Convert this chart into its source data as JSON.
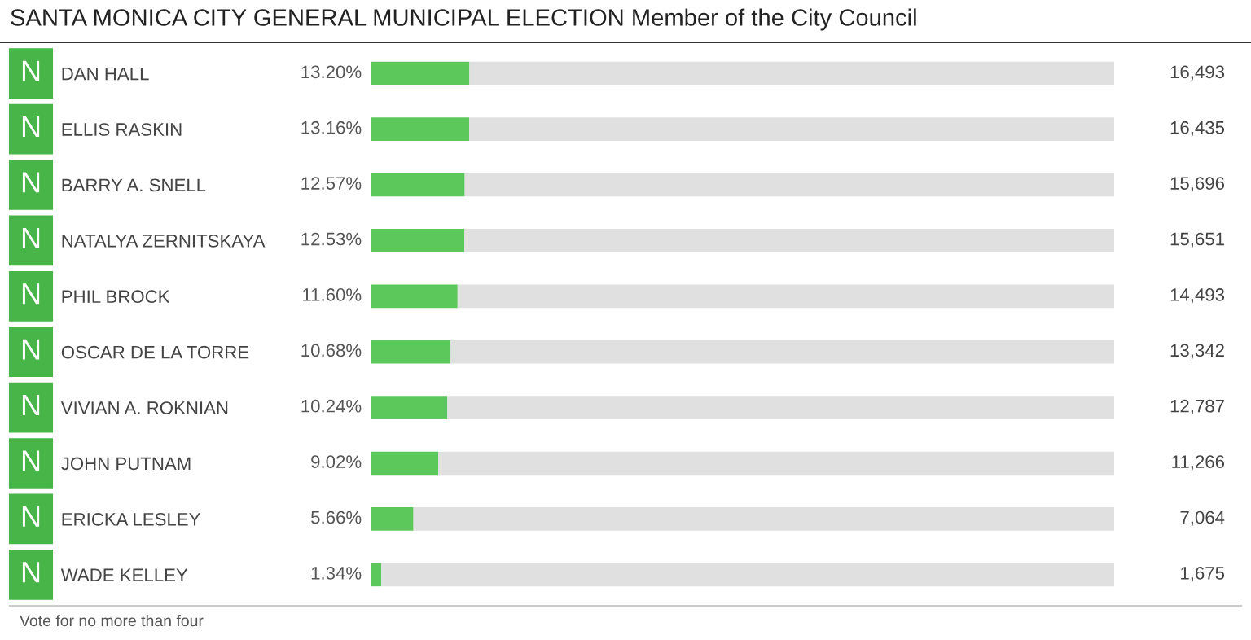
{
  "chart_data": {
    "type": "bar",
    "orientation": "horizontal",
    "stacked": true,
    "title": "SANTA MONICA CITY GENERAL MUNICIPAL ELECTION Member of the City Council",
    "categories": [
      "DAN HALL",
      "ELLIS RASKIN",
      "BARRY A. SNELL",
      "NATALYA ZERNITSKAYA",
      "PHIL BROCK",
      "OSCAR DE LA TORRE",
      "VIVIAN A. ROKNIAN",
      "JOHN PUTNAM",
      "ERICKA LESLEY",
      "WADE KELLEY"
    ],
    "series": [
      {
        "color": "#5cc85c",
        "values": [
          13.2,
          13.16,
          12.57,
          12.53,
          11.6,
          10.68,
          10.24,
          9.02,
          5.66,
          1.34
        ],
        "value_labels": [
          "13.20%",
          "13.16%",
          "12.57%",
          "12.53%",
          "11.60%",
          "10.68%",
          "10.24%",
          "9.02%",
          "5.66%",
          "1.34%"
        ]
      },
      {
        "color": "#e0e0e0",
        "values": [
          86.8,
          86.84,
          87.43,
          87.47,
          88.4,
          89.32,
          89.76,
          90.98,
          94.34,
          98.66
        ]
      }
    ],
    "xlim": [
      0,
      100
    ],
    "tick_labels": "y",
    "annotations": [
      "N",
      "N",
      "N",
      "N",
      "N",
      "N",
      "N",
      "N",
      "N",
      "N",
      "16,493",
      "16,435",
      "15,696",
      "15,651",
      "14,493",
      "13,342",
      "12,787",
      "11,266",
      "7,064",
      "1,675",
      "Vote for no more than four"
    ]
  }
}
